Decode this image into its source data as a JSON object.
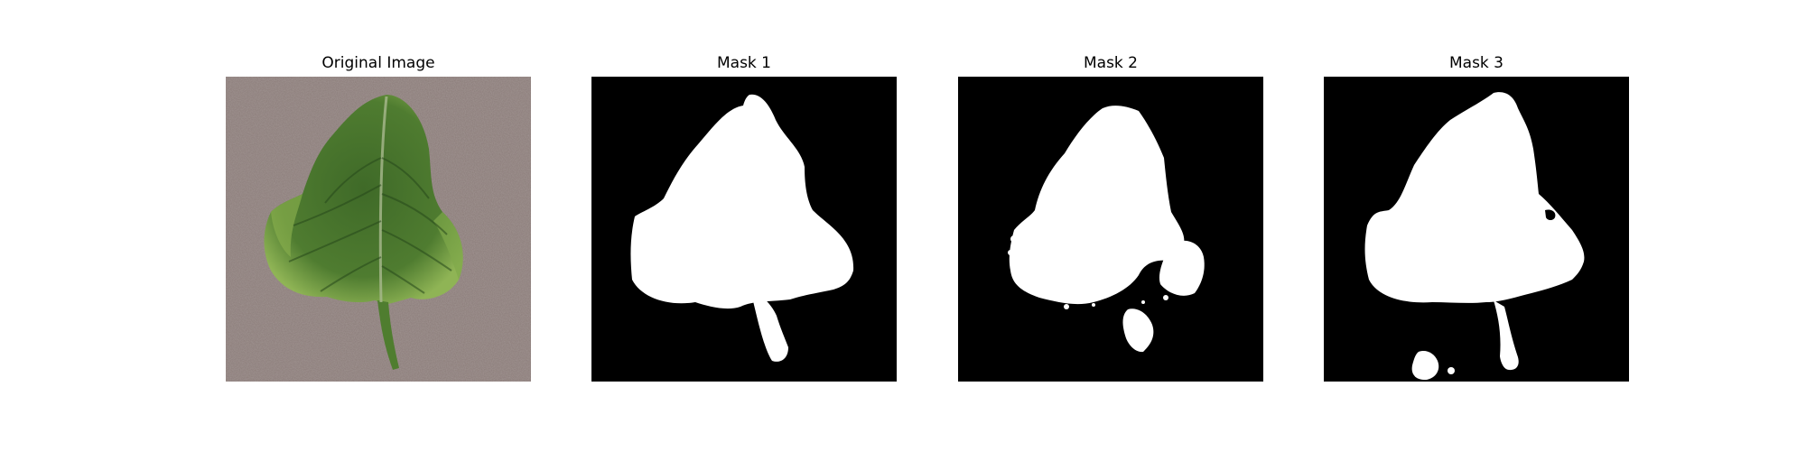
{
  "panels": [
    {
      "title": "Original Image"
    },
    {
      "title": "Mask 1"
    },
    {
      "title": "Mask 2"
    },
    {
      "title": "Mask 3"
    }
  ],
  "colors": {
    "background": "#8a7b78",
    "leaf_dark": "#2f5a20",
    "leaf_light": "#7fa84a",
    "mask_background": "#000000",
    "mask_foreground": "#ffffff"
  }
}
